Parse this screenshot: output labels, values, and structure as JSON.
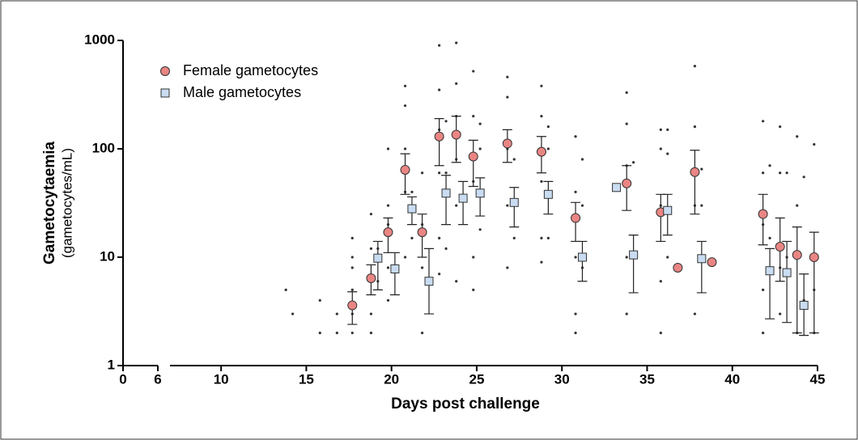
{
  "chart_data": {
    "type": "scatter",
    "log_y": true,
    "y_label": "Gametocytaemia",
    "y_label_sub": "(gametocytes/mL)",
    "x_label": "Days post challenge",
    "xlim": [
      0,
      45
    ],
    "xbreak": [
      6,
      7
    ],
    "xticks": [
      0,
      6,
      10,
      15,
      20,
      25,
      30,
      35,
      40,
      45
    ],
    "ylim": [
      1,
      1000
    ],
    "yticks": [
      1,
      10,
      100,
      1000
    ],
    "legend": "top-left",
    "series": [
      {
        "name": "Female gametocytes",
        "color": "#e98583",
        "marker": "circle",
        "x": [
          17.7,
          18.8,
          19.8,
          20.8,
          21.8,
          22.8,
          23.8,
          24.8,
          26.8,
          28.8,
          30.8,
          33.8,
          35.8,
          36.8,
          37.8,
          38.8,
          41.8,
          42.8,
          43.8,
          44.8
        ],
        "values": [
          3.6,
          6.4,
          17,
          64,
          17,
          130,
          135,
          85,
          112,
          94,
          23,
          48,
          26,
          8,
          61,
          9,
          25,
          12.5,
          10.5,
          10
        ],
        "lower": [
          2.4,
          4.5,
          11,
          38,
          10,
          70,
          75,
          45,
          75,
          60,
          14,
          27,
          14,
          null,
          25,
          null,
          13,
          6,
          2,
          2
        ],
        "upper": [
          4.8,
          8.5,
          23,
          90,
          25,
          190,
          200,
          120,
          150,
          130,
          32,
          70,
          38,
          null,
          97,
          null,
          38,
          23,
          19,
          17
        ]
      },
      {
        "name": "Male gametocytes",
        "color": "#c9dcf1",
        "marker": "square",
        "x": [
          19.2,
          20.2,
          21.2,
          22.2,
          23.2,
          24.2,
          25.2,
          27.2,
          29.2,
          31.2,
          33.2,
          34.2,
          36.2,
          38.2,
          42.2,
          43.2,
          44.2
        ],
        "values": [
          9.8,
          7.8,
          28,
          6,
          39,
          35,
          39,
          32,
          38,
          10,
          44,
          10.5,
          27,
          9.7,
          7.5,
          7.2,
          3.6
        ],
        "lower": [
          5,
          4.5,
          20,
          3,
          20,
          20,
          24,
          19,
          25,
          6,
          null,
          4.7,
          16,
          4.7,
          2.7,
          2.5,
          1.9
        ],
        "upper": [
          14,
          11,
          36,
          12,
          57,
          50,
          54,
          44,
          50,
          14,
          null,
          16,
          38,
          14,
          12,
          14,
          7
        ]
      }
    ],
    "points": {
      "x": [
        13.8,
        14.2,
        15.8,
        15.8,
        16.8,
        16.8,
        17.7,
        17.7,
        17.7,
        17.7,
        17.7,
        17.7,
        18.8,
        18.8,
        18.8,
        18.8,
        18.8,
        19.8,
        19.8,
        19.8,
        19.8,
        19.8,
        20.8,
        20.8,
        20.8,
        20.8,
        20.8,
        21.8,
        21.8,
        21.8,
        21.8,
        22.8,
        22.8,
        22.8,
        22.8,
        22.8,
        22.8,
        23.8,
        23.8,
        23.8,
        23.8,
        23.8,
        23.8,
        24.8,
        24.8,
        24.8,
        24.8,
        24.8,
        26.8,
        26.8,
        26.8,
        26.8,
        26.8,
        28.8,
        28.8,
        28.8,
        28.8,
        28.8,
        30.8,
        30.8,
        30.8,
        30.8,
        30.8,
        33.8,
        33.8,
        33.8,
        33.8,
        33.8,
        35.8,
        35.8,
        35.8,
        35.8,
        35.8,
        37.8,
        37.8,
        37.8,
        37.8,
        41.8,
        41.8,
        41.8,
        41.8,
        41.8,
        42.8,
        42.8,
        42.8,
        42.8,
        43.8,
        43.8,
        43.8,
        44.8,
        44.8,
        44.8,
        19.2,
        19.2,
        21.2,
        21.2,
        23.2,
        23.2,
        23.2,
        25.2,
        25.2,
        25.2,
        27.2,
        27.2,
        29.2,
        29.2,
        29.2,
        31.2,
        31.2,
        31.2,
        34.2,
        34.2,
        36.2,
        36.2,
        36.2,
        38.2,
        38.2,
        42.2,
        42.2,
        43.2,
        43.2,
        44.2,
        44.2
      ],
      "y": [
        5,
        3,
        4,
        2,
        2,
        3,
        15,
        10,
        8,
        5,
        3,
        2,
        25,
        12,
        6,
        3,
        2,
        100,
        30,
        20,
        8,
        4,
        380,
        250,
        100,
        40,
        10,
        60,
        20,
        8,
        2,
        900,
        350,
        150,
        60,
        15,
        7,
        950,
        400,
        200,
        80,
        30,
        6,
        520,
        200,
        50,
        10,
        5,
        460,
        300,
        100,
        30,
        8,
        380,
        200,
        50,
        15,
        9,
        130,
        40,
        10,
        3,
        2,
        330,
        170,
        70,
        10,
        3,
        150,
        100,
        30,
        6,
        2,
        580,
        160,
        30,
        3,
        180,
        60,
        20,
        5,
        2,
        160,
        60,
        8,
        3,
        130,
        30,
        2,
        110,
        5,
        2,
        12,
        6,
        40,
        15,
        180,
        60,
        12,
        170,
        100,
        18,
        80,
        15,
        160,
        100,
        15,
        80,
        30,
        8,
        75,
        10,
        150,
        90,
        10,
        65,
        30,
        70,
        15,
        60,
        10,
        55,
        4
      ]
    }
  }
}
